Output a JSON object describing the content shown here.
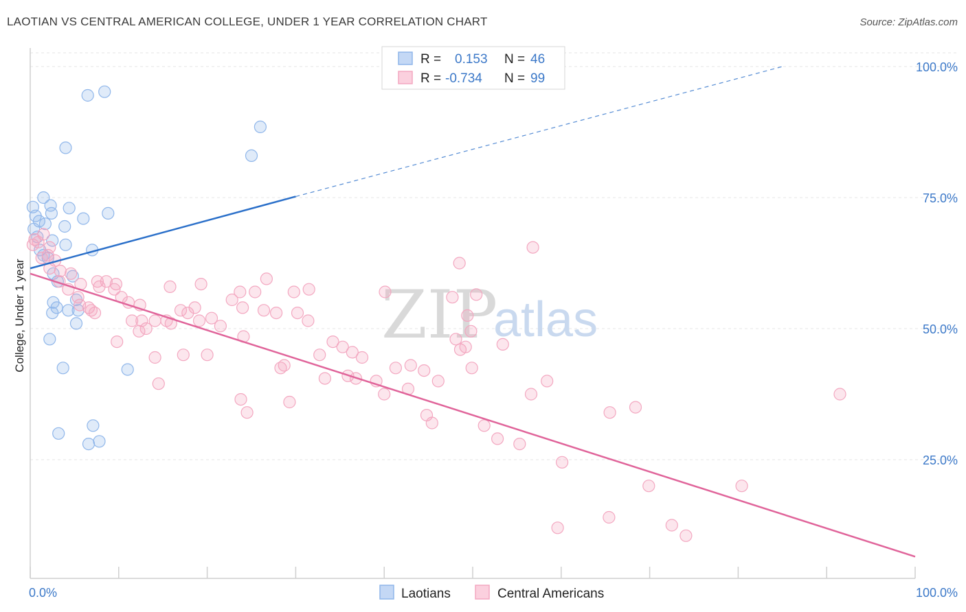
{
  "header": {
    "title": "LAOTIAN VS CENTRAL AMERICAN COLLEGE, UNDER 1 YEAR CORRELATION CHART",
    "source": "Source: ZipAtlas.com"
  },
  "watermark": {
    "zip": "ZIP",
    "atlas": "atlas"
  },
  "legend_box": {
    "rows": [
      {
        "r_label": "R =",
        "r_value": "0.153",
        "n_label": "N =",
        "n_value": "46"
      },
      {
        "r_label": "R =",
        "r_value": "-0.734",
        "n_label": "N =",
        "n_value": "99"
      }
    ]
  },
  "chart_data": {
    "type": "scatter",
    "title": "LAOTIAN VS CENTRAL AMERICAN COLLEGE, UNDER 1 YEAR CORRELATION CHART",
    "xlabel": "",
    "ylabel": "College, Under 1 year",
    "xlim": [
      0,
      100
    ],
    "ylim": [
      0,
      102
    ],
    "x_tick_labels": [
      "0.0%",
      "100.0%"
    ],
    "y_tick_labels": [
      "100.0%",
      "75.0%",
      "50.0%",
      "25.0%"
    ],
    "y_ticks": [
      100,
      75,
      50,
      25
    ],
    "grid": true,
    "legend_position": "bottom-center",
    "colors": {
      "laotians": "#8fb6ea",
      "central_americans": "#f3a7c0",
      "laotians_line": "#2a6fc9",
      "central_line": "#e0649a"
    },
    "series": [
      {
        "name": "Laotians",
        "r": 0.153,
        "n": 46,
        "trend": {
          "x": [
            0,
            30
          ],
          "y": [
            61.5,
            75.2
          ],
          "dashed_to": [
            85,
            100
          ]
        },
        "points": [
          [
            6.5,
            94.5
          ],
          [
            8.4,
            95.2
          ],
          [
            26,
            88.5
          ],
          [
            4,
            84.5
          ],
          [
            25,
            83
          ],
          [
            1.5,
            75
          ],
          [
            2.3,
            73.5
          ],
          [
            0.3,
            73.2
          ],
          [
            4.4,
            73
          ],
          [
            6,
            71
          ],
          [
            8.8,
            72
          ],
          [
            0.6,
            71.5
          ],
          [
            2.4,
            72
          ],
          [
            1,
            70.5
          ],
          [
            1.7,
            70
          ],
          [
            3.9,
            69.5
          ],
          [
            0.4,
            69
          ],
          [
            0.8,
            67.5
          ],
          [
            2.5,
            66.8
          ],
          [
            4,
            66
          ],
          [
            1.1,
            65
          ],
          [
            7,
            65
          ],
          [
            1.5,
            64
          ],
          [
            2,
            63.5
          ],
          [
            2.6,
            60.5
          ],
          [
            4.8,
            60
          ],
          [
            3.1,
            59
          ],
          [
            2.6,
            55
          ],
          [
            5.2,
            55.5
          ],
          [
            3,
            54
          ],
          [
            4.3,
            53.5
          ],
          [
            5.4,
            53.5
          ],
          [
            2.5,
            53
          ],
          [
            5.2,
            51
          ],
          [
            2.2,
            48
          ],
          [
            11,
            42.2
          ],
          [
            3.7,
            42.5
          ],
          [
            7.1,
            31.5
          ],
          [
            3.2,
            30
          ],
          [
            7.8,
            28.5
          ],
          [
            6.6,
            28
          ]
        ]
      },
      {
        "name": "Central Americans",
        "r": -0.734,
        "n": 99,
        "trend": {
          "x": [
            0,
            100
          ],
          "y": [
            60.5,
            6.5
          ]
        },
        "points": [
          [
            0.3,
            66
          ],
          [
            0.5,
            67
          ],
          [
            1.5,
            68
          ],
          [
            0.9,
            66.5
          ],
          [
            2,
            64
          ],
          [
            2.2,
            65.5
          ],
          [
            1.3,
            63.5
          ],
          [
            2.8,
            63
          ],
          [
            2.2,
            61.5
          ],
          [
            3.4,
            61
          ],
          [
            4.6,
            60.5
          ],
          [
            3.3,
            59
          ],
          [
            7.6,
            59
          ],
          [
            8.6,
            59
          ],
          [
            9.7,
            58.5
          ],
          [
            4.3,
            57.5
          ],
          [
            5.7,
            58.5
          ],
          [
            7.8,
            58
          ],
          [
            9.5,
            57.5
          ],
          [
            5.4,
            56
          ],
          [
            10.3,
            56
          ],
          [
            11.1,
            55
          ],
          [
            12.4,
            54.5
          ],
          [
            5.6,
            54.5
          ],
          [
            6.6,
            54
          ],
          [
            6.9,
            53.5
          ],
          [
            7.3,
            53
          ],
          [
            12.6,
            51.5
          ],
          [
            14.1,
            51.5
          ],
          [
            15.4,
            51.5
          ],
          [
            11.5,
            51.5
          ],
          [
            15.9,
            51
          ],
          [
            13.1,
            50
          ],
          [
            12.3,
            49.5
          ],
          [
            9.8,
            47.5
          ],
          [
            15.8,
            58
          ],
          [
            19.3,
            58.5
          ],
          [
            17,
            53.5
          ],
          [
            17.8,
            53
          ],
          [
            18.6,
            54
          ],
          [
            20.5,
            52
          ],
          [
            19.1,
            51.5
          ],
          [
            21.5,
            50.5
          ],
          [
            22.8,
            55.5
          ],
          [
            24,
            54
          ],
          [
            26.4,
            53.5
          ],
          [
            23.7,
            57
          ],
          [
            25.4,
            57
          ],
          [
            26.7,
            59.5
          ],
          [
            29.8,
            57
          ],
          [
            31.5,
            57.5
          ],
          [
            27.8,
            53
          ],
          [
            30.2,
            53
          ],
          [
            31.4,
            51.5
          ],
          [
            24.1,
            48.5
          ],
          [
            20,
            45
          ],
          [
            17.3,
            45
          ],
          [
            14.1,
            44.5
          ],
          [
            14.5,
            39.5
          ],
          [
            23.8,
            36.5
          ],
          [
            24.5,
            34
          ],
          [
            28.7,
            43
          ],
          [
            29.3,
            36
          ],
          [
            28.3,
            42.5
          ],
          [
            32.7,
            45
          ],
          [
            34.2,
            47.5
          ],
          [
            35.3,
            46.5
          ],
          [
            36.4,
            45.5
          ],
          [
            37.5,
            44.5
          ],
          [
            35.9,
            41
          ],
          [
            33.3,
            40.5
          ],
          [
            36.8,
            40.5
          ],
          [
            39.1,
            40
          ],
          [
            41.3,
            42.5
          ],
          [
            40,
            37.5
          ],
          [
            42.7,
            38.5
          ],
          [
            43,
            43
          ],
          [
            44.5,
            42
          ],
          [
            46.1,
            40
          ],
          [
            44.8,
            33.5
          ],
          [
            45.4,
            32
          ],
          [
            48.6,
            46
          ],
          [
            49.2,
            46.5
          ],
          [
            48.1,
            48
          ],
          [
            49.9,
            42.5
          ],
          [
            53.4,
            47
          ],
          [
            51.3,
            31.5
          ],
          [
            52.8,
            29
          ],
          [
            55.3,
            28
          ],
          [
            56.6,
            37.5
          ],
          [
            58.4,
            40
          ],
          [
            60.1,
            24.5
          ],
          [
            59.6,
            12
          ],
          [
            65.4,
            14
          ],
          [
            72.5,
            12.5
          ],
          [
            74.1,
            10.5
          ],
          [
            69.9,
            20
          ],
          [
            65.5,
            34
          ],
          [
            68.4,
            35
          ],
          [
            91.5,
            37.5
          ],
          [
            80.4,
            20
          ],
          [
            56.8,
            65.5
          ],
          [
            48.5,
            62.5
          ],
          [
            50.4,
            56.5
          ],
          [
            49.4,
            52.5
          ],
          [
            47.7,
            56
          ],
          [
            49.8,
            49.5
          ],
          [
            40.1,
            57
          ]
        ]
      }
    ]
  },
  "bottom_legend": {
    "items": [
      "Laotians",
      "Central Americans"
    ]
  }
}
